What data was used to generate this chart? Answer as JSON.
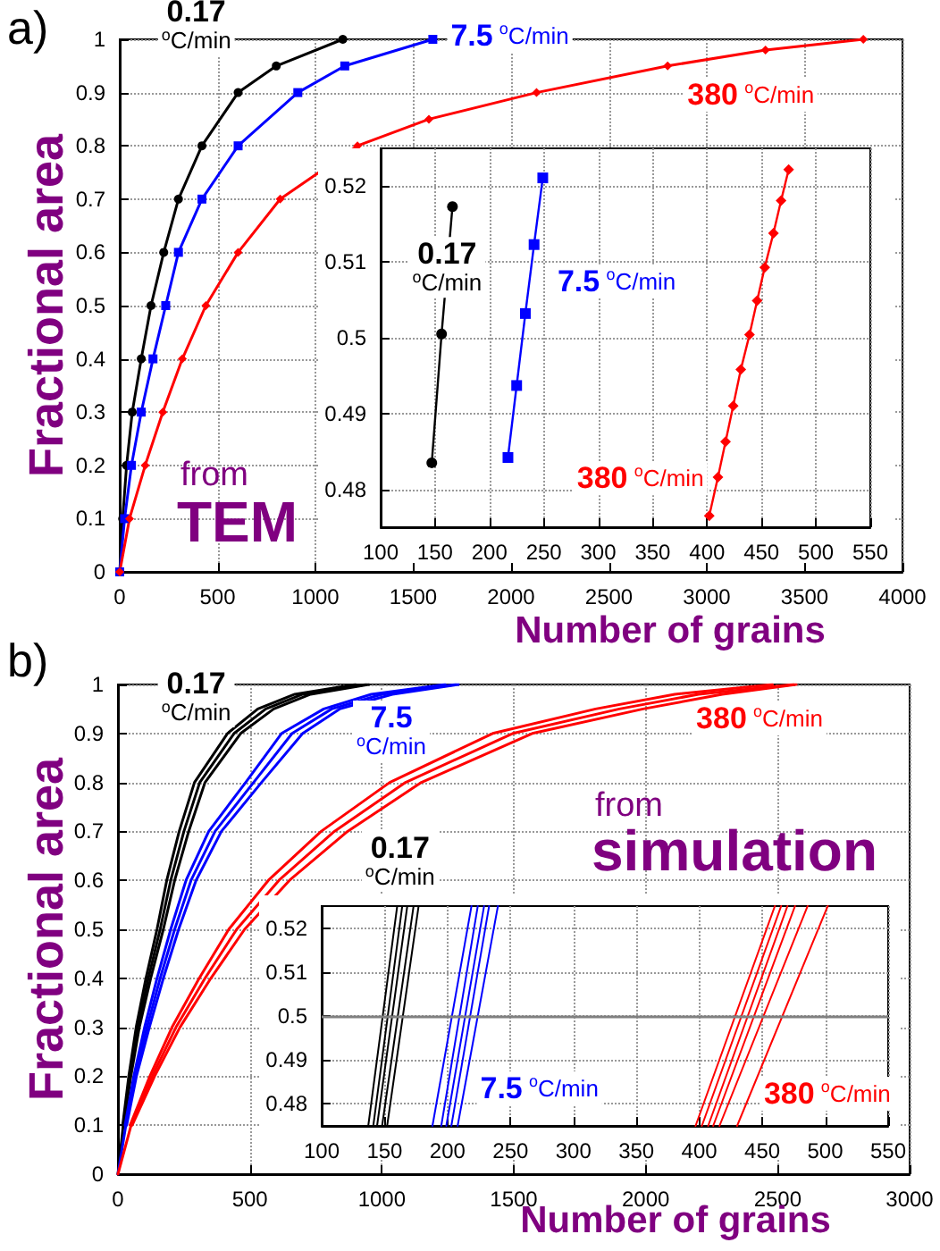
{
  "chart_data": [
    {
      "type": "line",
      "xlabel": "Number of grains",
      "ylabel": "Fractional area",
      "annotations": [
        "a)",
        "from",
        "TEM"
      ],
      "series": [
        {
          "name": "0.17 $^{o}$C/min",
          "color": "#000000",
          "marker": "circle",
          "x": [
            0,
            15,
            35,
            64,
            110,
            160,
            225,
            300,
            420,
            605,
            800,
            1140
          ],
          "values": [
            0,
            0.1,
            0.2,
            0.3,
            0.4,
            0.5,
            0.6,
            0.7,
            0.8,
            0.9,
            0.95,
            1
          ]
        },
        {
          "name": "7.5 $^{o}$C/min",
          "color": "#0000ff",
          "marker": "square",
          "x": [
            0,
            25,
            60,
            110,
            170,
            235,
            300,
            420,
            605,
            910,
            1150,
            1600
          ],
          "values": [
            0,
            0.1,
            0.2,
            0.3,
            0.4,
            0.5,
            0.6,
            0.7,
            0.8,
            0.9,
            0.95,
            1
          ]
        },
        {
          "name": "380 $^{o}$C/min",
          "color": "#ff0000",
          "marker": "diamond",
          "x": [
            0,
            50,
            130,
            220,
            320,
            440,
            605,
            820,
            1215,
            1580,
            2130,
            2800,
            3300,
            3800
          ],
          "values": [
            0,
            0.1,
            0.2,
            0.3,
            0.4,
            0.5,
            0.6,
            0.7,
            0.8,
            0.85,
            0.9,
            0.95,
            0.98,
            1
          ]
        }
      ],
      "xlim": [
        0,
        4000
      ],
      "xticks": [
        0,
        500,
        1000,
        1500,
        2000,
        2500,
        3000,
        3500,
        4000
      ],
      "ylim": [
        0,
        1
      ],
      "yticks": [
        0,
        0.1,
        0.2,
        0.3,
        0.4,
        0.5,
        0.6,
        0.7,
        0.8,
        0.9,
        1
      ],
      "grid": true,
      "line_style": "solid"
    },
    {
      "type": "line",
      "series": [
        {
          "name": "0.17 $^{o}$C/min",
          "color": "#000000",
          "marker": "circle",
          "x": [
            147,
            156,
            166
          ],
          "values": [
            0.4835,
            0.5005,
            0.5173
          ]
        },
        {
          "name": "7.5 $^{o}$C/min",
          "color": "#0000ff",
          "marker": "square",
          "x": [
            217,
            225,
            233,
            241,
            249
          ],
          "values": [
            0.4842,
            0.4937,
            0.5032,
            0.5123,
            0.5211
          ]
        },
        {
          "name": "380 $^{o}$C/min",
          "color": "#ff0000",
          "marker": "diamond",
          "x": [
            402,
            410,
            417,
            424,
            431,
            439,
            446,
            453,
            461,
            468,
            475
          ],
          "values": [
            0.4765,
            0.4816,
            0.4863,
            0.491,
            0.4958,
            0.5004,
            0.5049,
            0.5093,
            0.5138,
            0.5181,
            0.5222
          ]
        }
      ],
      "xlim": [
        100,
        550
      ],
      "xticks": [
        100,
        150,
        200,
        250,
        300,
        350,
        400,
        450,
        500,
        550
      ],
      "ylim": [
        0.475,
        0.525
      ],
      "yticks": [
        0.48,
        0.49,
        0.5,
        0.51,
        0.52
      ],
      "grid": true,
      "line_style": "solid"
    },
    {
      "type": "line",
      "xlabel": "Number of grains",
      "ylabel": "Fractional area",
      "annotations": [
        "b)",
        "from",
        "simulation"
      ],
      "marker": "none",
      "series": [
        {
          "color": "#000000",
          "x": [
            18,
            41,
            69,
            106,
            148,
            185,
            232,
            290,
            415,
            530,
            670,
            900
          ],
          "values": [
            0.1,
            0.2,
            0.3,
            0.4,
            0.5,
            0.6,
            0.7,
            0.8,
            0.9,
            0.95,
            0.98,
            1
          ]
        },
        {
          "name": "0.17 $^{o}$C/min",
          "color": "#000000",
          "x": [
            0,
            20,
            45,
            75,
            115,
            160,
            200,
            250,
            310,
            440,
            560,
            700,
            940
          ],
          "values": [
            0,
            0.1,
            0.2,
            0.3,
            0.4,
            0.5,
            0.6,
            0.7,
            0.8,
            0.9,
            0.95,
            0.98,
            1
          ]
        },
        {
          "color": "#000000",
          "x": [
            22,
            49,
            81,
            124,
            172,
            215,
            268,
            330,
            465,
            590,
            730,
            950
          ],
          "values": [
            0.1,
            0.2,
            0.3,
            0.4,
            0.5,
            0.6,
            0.7,
            0.8,
            0.9,
            0.95,
            0.98,
            1
          ]
        },
        {
          "color": "#0000ff",
          "x": [
            27,
            60,
            101,
            148,
            200,
            258,
            344,
            484,
            620,
            780,
            960,
            1240
          ],
          "values": [
            0.1,
            0.2,
            0.3,
            0.4,
            0.5,
            0.6,
            0.7,
            0.8,
            0.9,
            0.95,
            0.98,
            1
          ]
        },
        {
          "name": "7.5 $^{o}$C/min",
          "color": "#0000ff",
          "x": [
            0,
            30,
            65,
            110,
            160,
            215,
            277,
            368,
            514,
            660,
            810,
            1000,
            1280
          ],
          "values": [
            0,
            0.1,
            0.2,
            0.3,
            0.4,
            0.5,
            0.6,
            0.7,
            0.8,
            0.9,
            0.95,
            0.98,
            1
          ]
        },
        {
          "color": "#0000ff",
          "x": [
            33,
            70,
            119,
            172,
            230,
            296,
            392,
            544,
            700,
            840,
            1040,
            1290
          ],
          "values": [
            0.1,
            0.2,
            0.3,
            0.4,
            0.5,
            0.6,
            0.7,
            0.8,
            0.9,
            0.95,
            0.98,
            1
          ]
        },
        {
          "color": "#ff0000",
          "x": [
            46,
            121,
            205,
            308,
            420,
            570,
            770,
            1030,
            1420,
            1810,
            2110,
            2480
          ],
          "values": [
            0.1,
            0.2,
            0.3,
            0.4,
            0.5,
            0.6,
            0.7,
            0.8,
            0.9,
            0.95,
            0.98,
            1
          ]
        },
        {
          "name": "380 $^{o}$C/min",
          "color": "#ff0000",
          "x": [
            0,
            50,
            130,
            220,
            330,
            450,
            610,
            820,
            1090,
            1496,
            1900,
            2200,
            2560
          ],
          "values": [
            0,
            0.1,
            0.2,
            0.3,
            0.4,
            0.5,
            0.6,
            0.7,
            0.8,
            0.9,
            0.95,
            0.98,
            1
          ]
        },
        {
          "color": "#ff0000",
          "x": [
            54,
            139,
            235,
            352,
            480,
            650,
            870,
            1150,
            1570,
            1990,
            2290,
            2570
          ],
          "values": [
            0.1,
            0.2,
            0.3,
            0.4,
            0.5,
            0.6,
            0.7,
            0.8,
            0.9,
            0.95,
            0.98,
            1
          ]
        }
      ],
      "xlim": [
        0,
        3000
      ],
      "xticks": [
        0,
        500,
        1000,
        1500,
        2000,
        2500,
        3000
      ],
      "ylim": [
        0,
        1
      ],
      "yticks": [
        0,
        0.1,
        0.2,
        0.3,
        0.4,
        0.5,
        0.6,
        0.7,
        0.8,
        0.9,
        1
      ],
      "grid": true,
      "line_style": "solid"
    },
    {
      "type": "line",
      "series": [
        {
          "color": "#000000",
          "x": [
            137,
            160
          ],
          "values": [
            0.475,
            0.525
          ]
        },
        {
          "color": "#000000",
          "x": [
            141,
            164
          ],
          "values": [
            0.475,
            0.525
          ]
        },
        {
          "name": "0.17 $^{o}$C/min",
          "color": "#000000",
          "x": [
            144,
            168
          ],
          "values": [
            0.475,
            0.525
          ]
        },
        {
          "color": "#000000",
          "x": [
            148,
            173
          ],
          "values": [
            0.475,
            0.525
          ]
        },
        {
          "color": "#000000",
          "x": [
            152,
            177
          ],
          "values": [
            0.475,
            0.525
          ]
        },
        {
          "color": "#0000ff",
          "x": [
            188,
            219
          ],
          "values": [
            0.475,
            0.525
          ]
        },
        {
          "color": "#0000ff",
          "x": [
            195,
            224
          ],
          "values": [
            0.475,
            0.525
          ]
        },
        {
          "name": "7.5 $^{o}$C/min",
          "color": "#0000ff",
          "x": [
            199,
            229
          ],
          "values": [
            0.475,
            0.525
          ]
        },
        {
          "color": "#0000ff",
          "x": [
            203,
            233
          ],
          "values": [
            0.475,
            0.525
          ]
        },
        {
          "color": "#0000ff",
          "x": [
            208,
            240
          ],
          "values": [
            0.475,
            0.525
          ]
        },
        {
          "color": "#ff0000",
          "x": [
            397,
            460
          ],
          "values": [
            0.475,
            0.525
          ]
        },
        {
          "color": "#ff0000",
          "x": [
            402,
            465
          ],
          "values": [
            0.475,
            0.525
          ]
        },
        {
          "color": "#ff0000",
          "x": [
            407,
            470
          ],
          "values": [
            0.475,
            0.525
          ]
        },
        {
          "color": "#ff0000",
          "x": [
            411,
            476
          ],
          "values": [
            0.475,
            0.525
          ]
        },
        {
          "color": "#ff0000",
          "x": [
            416,
            486
          ],
          "values": [
            0.475,
            0.525
          ]
        },
        {
          "name": "380 $^{o}$C/min",
          "color": "#ff0000",
          "x": [
            430,
            502
          ],
          "values": [
            0.475,
            0.525
          ]
        }
      ],
      "ref_lines": [
        {
          "axis": "y",
          "value": 0.5,
          "color": "#808080"
        }
      ],
      "xlim": [
        100,
        550
      ],
      "xticks": [
        100,
        150,
        200,
        250,
        300,
        350,
        400,
        450,
        500,
        550
      ],
      "ylim": [
        0.475,
        0.525
      ],
      "yticks": [
        0.48,
        0.49,
        0.5,
        0.51,
        0.52
      ],
      "grid": true,
      "line_style": "solid"
    }
  ]
}
